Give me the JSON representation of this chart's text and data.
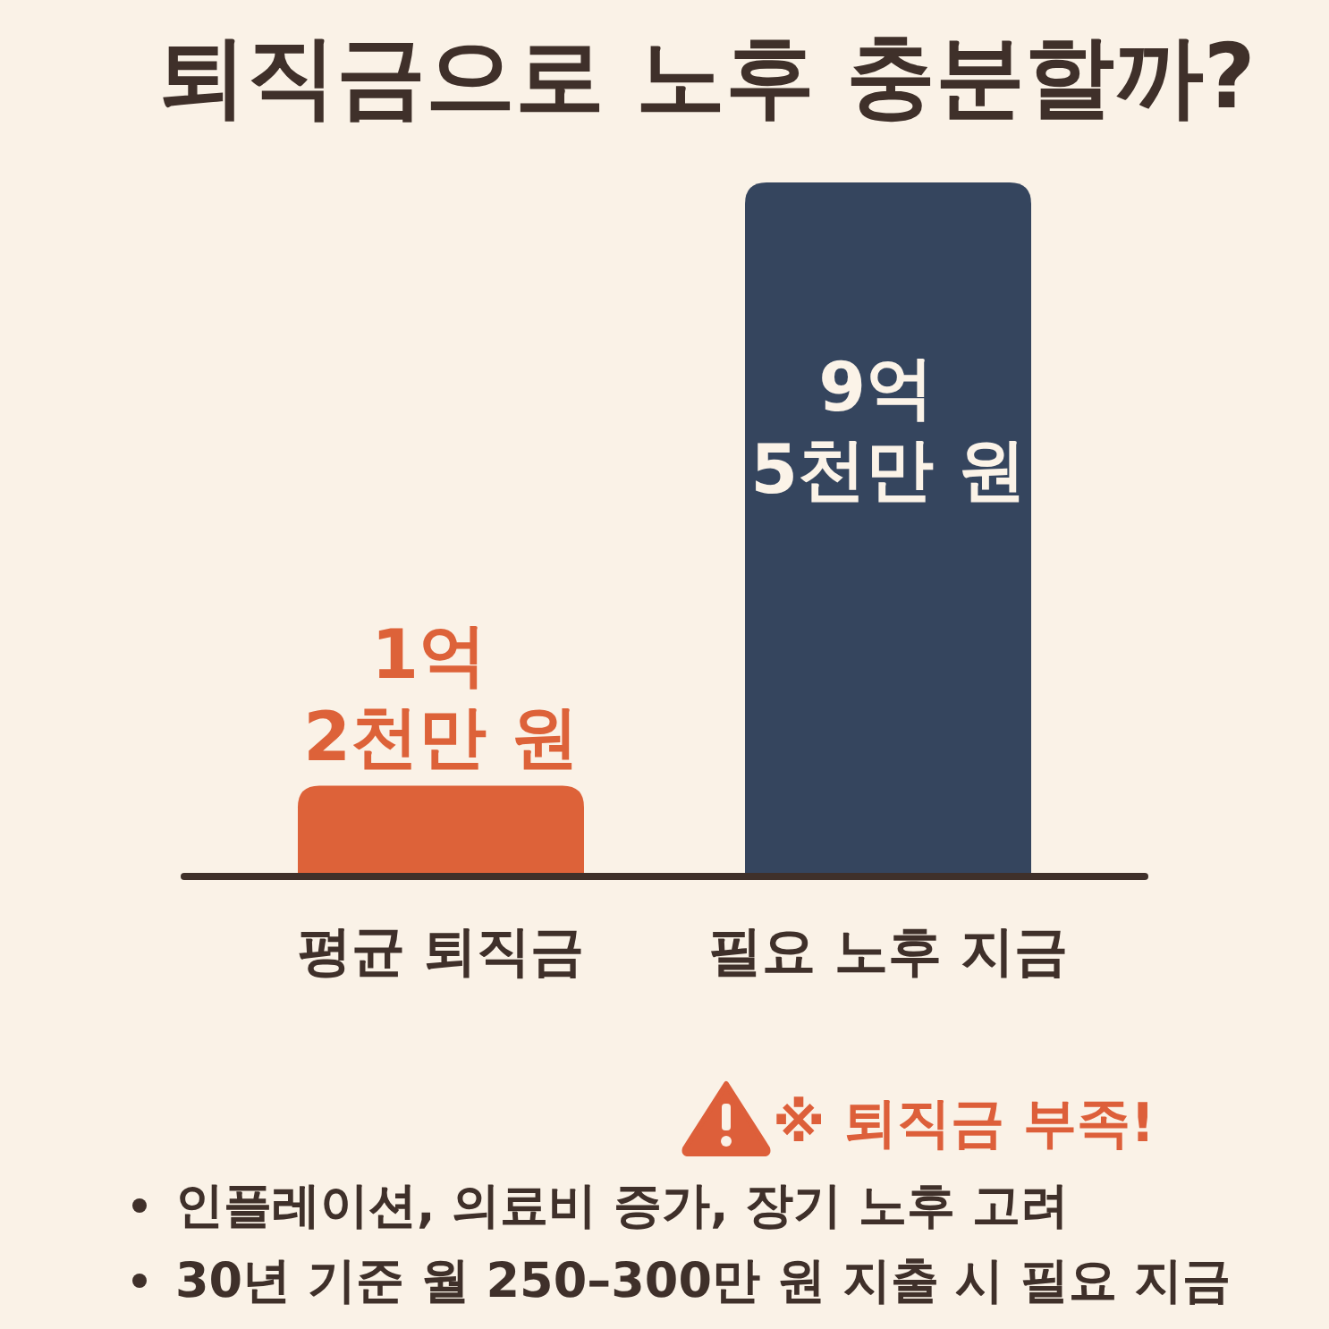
{
  "chart_data": {
    "type": "bar",
    "title": "퇴직금으로 노후 충분할까?",
    "categories": [
      "평균 퇴직금",
      "필요 노후 지금"
    ],
    "values": [
      1.2,
      9.5
    ],
    "colors": [
      "#dd6239",
      "#35455e"
    ],
    "value_labels": [
      "1억 2천만 원",
      "9억 5천만 원"
    ],
    "annotations": [
      "※ 퇴직금 부족!",
      "인플레이션, 의료비 증가, 장기 노후 고려",
      "30년 기준 월 250–300만 원 지출 시 필요 지금"
    ]
  }
}
